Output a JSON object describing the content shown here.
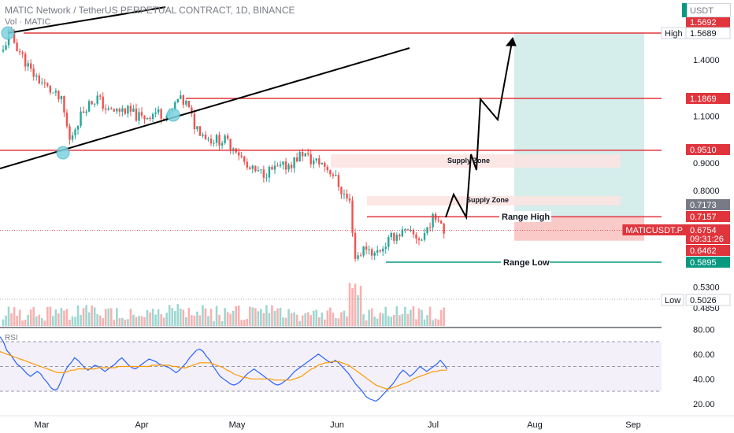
{
  "header": {
    "symbol_title": "MATIC Network / TetherUS PERPETUAL CONTRACT, 1D, BINANCE",
    "volume_label": "Vol · MATIC",
    "rsi_label": "RSI",
    "currency": "USDT"
  },
  "colors": {
    "up": "#26a69a",
    "down": "#ef5350",
    "level_line": "#e0353d",
    "range_low_line": "#089981",
    "rsi_line": "#2962ff",
    "rsi_ma": "#ff9800",
    "target_zone": "#b2dfdb",
    "stop_zone": "#f7b3b1",
    "supply_zone": "#fbe3e1"
  },
  "chart_data": {
    "type": "candlestick",
    "x_ticks": [
      "Mar",
      "Apr",
      "May",
      "Jun",
      "Jul",
      "Aug",
      "Sep"
    ],
    "y_ticks": [
      1.4,
      1.1,
      0.9,
      0.8,
      0.53,
      0.485
    ],
    "y_tick_labels": [
      "1.4000",
      "1.1000",
      "0.9000",
      "0.8000",
      "0.5300",
      "0.4850"
    ],
    "price_scale": "log",
    "price_labels": [
      {
        "label": "",
        "value": "1.5692",
        "kind": "red"
      },
      {
        "label": "High",
        "value": "1.5689",
        "kind": "plain"
      },
      {
        "label": "",
        "value": "1.1869",
        "kind": "red"
      },
      {
        "label": "",
        "value": "0.9510",
        "kind": "red"
      },
      {
        "label": "",
        "value": "0.7173",
        "kind": "gray"
      },
      {
        "label": "",
        "value": "0.7157",
        "kind": "red"
      },
      {
        "label": "MATICUSDT.P",
        "value": "0.6754",
        "kind": "red"
      },
      {
        "label": "",
        "value": "09:31:26",
        "kind": "red"
      },
      {
        "label": "",
        "value": "0.6462",
        "kind": "red"
      },
      {
        "label": "",
        "value": "0.5895",
        "kind": "green"
      },
      {
        "label": "Low",
        "value": "0.5026",
        "kind": "plain"
      }
    ],
    "levels": [
      1.5689,
      1.1869,
      0.951,
      0.7157,
      0.5895
    ],
    "annotations": [
      "Supply Zone",
      "Supply Zone",
      "Range High",
      "Range Low"
    ],
    "rsi": {
      "y_ticks": [
        "80.00",
        "60.00",
        "40.00",
        "20.00"
      ],
      "upper_band": 70,
      "lower_band": 30,
      "values": [
        74,
        70,
        63,
        60,
        56,
        52,
        50,
        47,
        44,
        42,
        44,
        46,
        44,
        40,
        37,
        33,
        31,
        32,
        38,
        45,
        50,
        53,
        57,
        55,
        52,
        49,
        47,
        49,
        51,
        50,
        48,
        46,
        48,
        50,
        52,
        55,
        57,
        54,
        51,
        49,
        48,
        50,
        52,
        54,
        56,
        55,
        54,
        52,
        51,
        50,
        49,
        47,
        45,
        47,
        50,
        53,
        57,
        60,
        63,
        64,
        62,
        58,
        55,
        50,
        46,
        42,
        40,
        38,
        36,
        35,
        36,
        38,
        41,
        44,
        46,
        48,
        46,
        44,
        42,
        40,
        38,
        36,
        35,
        36,
        38,
        40,
        43,
        46,
        48,
        50,
        52,
        54,
        56,
        58,
        60,
        58,
        56,
        54,
        53,
        55,
        53,
        50,
        47,
        44,
        40,
        36,
        33,
        30,
        26,
        24,
        23,
        22,
        24,
        27,
        30,
        33,
        36,
        40,
        44,
        47,
        45,
        42,
        44,
        47,
        50,
        48,
        46,
        48,
        50,
        52,
        55,
        52,
        48
      ],
      "ma_values": [
        62,
        61,
        60,
        59,
        58,
        57,
        56,
        55,
        54,
        53,
        52,
        51,
        50,
        49,
        48,
        47,
        46,
        45,
        45,
        45,
        46,
        47,
        47,
        48,
        48,
        48,
        48,
        48,
        48,
        49,
        49,
        49,
        49,
        49,
        49,
        50,
        50,
        50,
        50,
        50,
        50,
        50,
        50,
        50,
        50,
        51,
        51,
        51,
        51,
        51,
        51,
        50,
        50,
        49,
        49,
        49,
        50,
        51,
        52,
        53,
        53,
        53,
        53,
        52,
        51,
        50,
        49,
        47,
        46,
        44,
        43,
        42,
        41,
        41,
        40,
        40,
        40,
        40,
        40,
        40,
        40,
        39,
        39,
        39,
        39,
        39,
        39,
        40,
        41,
        42,
        44,
        46,
        48,
        49,
        51,
        52,
        53,
        53,
        54,
        54,
        54,
        53,
        52,
        51,
        49,
        47,
        45,
        43,
        41,
        39,
        37,
        35,
        34,
        33,
        32,
        32,
        33,
        34,
        35,
        36,
        37,
        38,
        40,
        41,
        42,
        43,
        44,
        45,
        46,
        46,
        47,
        47,
        47
      ]
    }
  }
}
